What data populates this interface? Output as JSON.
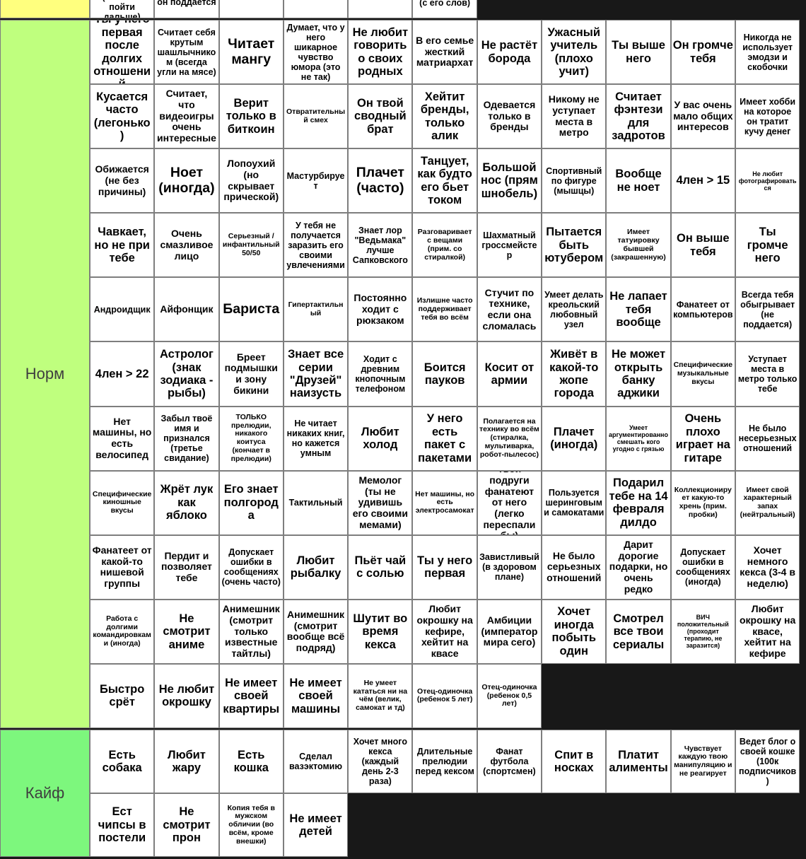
{
  "colors": {
    "background": "#181818",
    "grid_line": "#7e7e7e",
    "cell_bg": "#ffffff",
    "tier_top": "#ffff7e",
    "tier_norm": "#bfff7e",
    "tier_kaif": "#7df77d"
  },
  "tiers": [
    {
      "id": "top",
      "label": "",
      "color": "#ffff7e",
      "rows": [
        [
          {
            "t": "(но готов пойти дальше)",
            "s": "m",
            "off": -3
          },
          {
            "t": "он поддается",
            "s": "m",
            "off": -10
          },
          {
            "t": "",
            "s": "m"
          },
          {
            "t": "",
            "s": "m"
          },
          {
            "t": "",
            "s": "m"
          },
          {
            "t": "(с его слов)",
            "s": "m",
            "off": -9
          }
        ]
      ]
    },
    {
      "id": "norm",
      "label": "Норм",
      "color": "#bfff7e",
      "rows": [
        [
          {
            "t": "Ты у него первая после долгих отношений",
            "s": "l"
          },
          {
            "t": "Считает себя крутым шашлычником (всегда угли на мясе)",
            "s": "m"
          },
          {
            "t": "Читает мангу",
            "s": "xl"
          },
          {
            "t": "Думает, что у него шикарное чувство юмора (это не так)",
            "s": "m"
          },
          {
            "t": "Не любит говорить о своих родных",
            "s": "l"
          },
          {
            "t": "В его семье жесткий матриархат",
            "s": "ml"
          },
          {
            "t": "Не растёт борода",
            "s": "l"
          },
          {
            "t": "Ужасный учитель (плохо учит)",
            "s": "l"
          },
          {
            "t": "Ты выше него",
            "s": "l"
          },
          {
            "t": "Он громче тебя",
            "s": "l"
          },
          {
            "t": "Никогда не использует эмодзи и скобочки",
            "s": "m"
          }
        ],
        [
          {
            "t": "Кусается часто (легонько)",
            "s": "l"
          },
          {
            "t": "Считает, что видеоигры очень интересные",
            "s": "ml"
          },
          {
            "t": "Верит только в биткоин",
            "s": "l"
          },
          {
            "t": "Отвратительный смех",
            "s": "s"
          },
          {
            "t": "Он твой сводный брат",
            "s": "l"
          },
          {
            "t": "Хейтит бренды, только алик",
            "s": "l"
          },
          {
            "t": "Одевается только в бренды",
            "s": "ml"
          },
          {
            "t": "Никому не уступает места в метро",
            "s": "ml"
          },
          {
            "t": "Считает фэнтези для задротов",
            "s": "l"
          },
          {
            "t": "У вас очень мало общих интересов",
            "s": "ml"
          },
          {
            "t": "Имеет хобби на которое он тратит кучу денег",
            "s": "m"
          }
        ],
        [
          {
            "t": "Обижается (не без причины)",
            "s": "ml"
          },
          {
            "t": "Ноет (иногда)",
            "s": "xl"
          },
          {
            "t": "Лопоухий (но скрывает прической)",
            "s": "ml"
          },
          {
            "t": "Мастурбирует",
            "s": "m"
          },
          {
            "t": "Плачет (часто)",
            "s": "xl"
          },
          {
            "t": "Танцует, как будто его бьет током",
            "s": "l"
          },
          {
            "t": "Большой нос (прям шнобель)",
            "s": "l"
          },
          {
            "t": "Спортивный по фигуре (мышцы)",
            "s": "m"
          },
          {
            "t": "Вообще не ноет",
            "s": "l"
          },
          {
            "t": "4лен > 15",
            "s": "l"
          },
          {
            "t": "Не любит фотографироваться",
            "s": "xs"
          }
        ],
        [
          {
            "t": "Чавкает, но не при тебе",
            "s": "l"
          },
          {
            "t": "Очень смазливое лицо",
            "s": "ml"
          },
          {
            "t": "Серьезный / инфантильный 50/50",
            "s": "s"
          },
          {
            "t": "У тебя не получается заразить его своими увлечениями",
            "s": "m"
          },
          {
            "t": "Знает лор \"Ведьмака\" лучше Сапковского",
            "s": "m"
          },
          {
            "t": "Разговаривает с вещами (прим. со стиралкой)",
            "s": "s"
          },
          {
            "t": "Шахматный гроссмейстер",
            "s": "m"
          },
          {
            "t": "Пытается быть ютубером",
            "s": "l"
          },
          {
            "t": "Имеет татуировку бывшей (закрашенную)",
            "s": "s"
          },
          {
            "t": "Он выше тебя",
            "s": "l"
          },
          {
            "t": "Ты громче него",
            "s": "l"
          }
        ],
        [
          {
            "t": "Андроидщик",
            "s": "m"
          },
          {
            "t": "Айфонщик",
            "s": "ml"
          },
          {
            "t": "Бариста",
            "s": "xl"
          },
          {
            "t": "Гипертактильный",
            "s": "s"
          },
          {
            "t": "Постоянно ходит с рюкзаком",
            "s": "ml"
          },
          {
            "t": "Излишне часто поддерживает тебя во всём",
            "s": "s"
          },
          {
            "t": "Стучит по технике, если она сломалась",
            "s": "ml"
          },
          {
            "t": "Умеет делать креольский любовный узел",
            "s": "m"
          },
          {
            "t": "Не лапает тебя вообще",
            "s": "l"
          },
          {
            "t": "Фанатеет от компьютеров",
            "s": "m"
          },
          {
            "t": "Всегда тебя обыгрывает (не поддается)",
            "s": "m"
          }
        ],
        [
          {
            "t": "4лен > 22",
            "s": "l"
          },
          {
            "t": "Астролог (знак зодиака - рыбы)",
            "s": "l"
          },
          {
            "t": "Бреет подмышки и зону бикини",
            "s": "ml"
          },
          {
            "t": "Знает все серии \"Друзей\" наизусть",
            "s": "l"
          },
          {
            "t": "Ходит с древним кнопочным телефоном",
            "s": "m"
          },
          {
            "t": "Боится пауков",
            "s": "l"
          },
          {
            "t": "Косит от армии",
            "s": "l"
          },
          {
            "t": "Живёт в какой-то жопе города",
            "s": "l"
          },
          {
            "t": "Не может открыть банку аджики",
            "s": "l"
          },
          {
            "t": "Специфические музыкальные вкусы",
            "s": "s"
          },
          {
            "t": "Уступает места в метро только тебе",
            "s": "m"
          }
        ],
        [
          {
            "t": "Нет машины, но есть велосипед",
            "s": "ml"
          },
          {
            "t": "Забыл твоё имя и признался (третье свидание)",
            "s": "m"
          },
          {
            "t": "ТОЛЬКО прелюдии, никакого коитуса (кончает в прелюдии)",
            "s": "s"
          },
          {
            "t": "Не читает никаких книг, но кажется умным",
            "s": "m"
          },
          {
            "t": "Любит холод",
            "s": "l"
          },
          {
            "t": "У него есть пакет с пакетами",
            "s": "l"
          },
          {
            "t": "Полагается на технику во всём (стиралка, мультиварка, робот-пылесос)",
            "s": "s"
          },
          {
            "t": "Плачет (иногда)",
            "s": "l"
          },
          {
            "t": "Умеет аргументированно смешать кого угодно с грязью",
            "s": "xs"
          },
          {
            "t": "Очень плохо играет на гитаре",
            "s": "l"
          },
          {
            "t": "Не было несерьезных отношений",
            "s": "m"
          }
        ],
        [
          {
            "t": "Специфические киношные вкусы",
            "s": "s"
          },
          {
            "t": "Жрёт лук как яблоко",
            "s": "l"
          },
          {
            "t": "Его знает полгорода",
            "s": "l"
          },
          {
            "t": "Тактильный",
            "s": "m"
          },
          {
            "t": "Мемолог (ты не удивишь его своими мемами)",
            "s": "ml"
          },
          {
            "t": "Нет машины, но есть электросамокат",
            "s": "s"
          },
          {
            "t": "Твои подруги фанатеют от него (легко переспали бы)",
            "s": "ml"
          },
          {
            "t": "Пользуется шеринговыми самокатами",
            "s": "m"
          },
          {
            "t": "Подарил тебе на 14 февраля дилдо",
            "s": "l"
          },
          {
            "t": "Коллекционирует какую-то хрень (прим. пробки)",
            "s": "s"
          },
          {
            "t": "Имеет свой характерный запах (нейтральный)",
            "s": "s"
          }
        ],
        [
          {
            "t": "Фанатеет от какой-то нишевой группы",
            "s": "ml"
          },
          {
            "t": "Пердит и позволяет тебе",
            "s": "ml"
          },
          {
            "t": "Допускает ошибки в сообщениях (очень часто)",
            "s": "m"
          },
          {
            "t": "Любит рыбалку",
            "s": "l"
          },
          {
            "t": "Пьёт чай с солью",
            "s": "l"
          },
          {
            "t": "Ты у него первая",
            "s": "l"
          },
          {
            "t": "Завистливый (в здоровом плане)",
            "s": "m"
          },
          {
            "t": "Не было серьезных отношений",
            "s": "ml"
          },
          {
            "t": "Дарит дорогие подарки, но очень редко",
            "s": "ml"
          },
          {
            "t": "Допускает ошибки в сообщениях (иногда)",
            "s": "m"
          },
          {
            "t": "Хочет немного кекса (3-4 в неделю)",
            "s": "ml"
          }
        ],
        [
          {
            "t": "Работа с долгими командировками (иногда)",
            "s": "s"
          },
          {
            "t": "Не смотрит аниме",
            "s": "l"
          },
          {
            "t": "Анимешник (смотрит только известные тайтлы)",
            "s": "ml"
          },
          {
            "t": "Анимешник (смотрит вообще всё подряд)",
            "s": "ml"
          },
          {
            "t": "Шутит во время кекса",
            "s": "l"
          },
          {
            "t": "Любит окрошку на кефире, хейтит на квасе",
            "s": "ml"
          },
          {
            "t": "Амбиции (император мира сего)",
            "s": "ml"
          },
          {
            "t": "Хочет иногда побыть один",
            "s": "l"
          },
          {
            "t": "Смотрел все твои сериалы",
            "s": "l"
          },
          {
            "t": "ВИЧ положительный (проходит терапию, не заразится)",
            "s": "xs"
          },
          {
            "t": "Любит окрошку на квасе, хейтит на кефире",
            "s": "ml"
          }
        ],
        [
          {
            "t": "Быстро срёт",
            "s": "l"
          },
          {
            "t": "Не любит окрошку",
            "s": "l"
          },
          {
            "t": "Не имеет своей квартиры",
            "s": "l"
          },
          {
            "t": "Не имеет своей машины",
            "s": "l"
          },
          {
            "t": "Не умеет кататься ни на чём (велик, самокат и тд)",
            "s": "s"
          },
          {
            "t": "Отец-одиночка (ребенок 5 лет)",
            "s": "s"
          },
          {
            "t": "Отец-одиночка (ребенок 0,5 лет)",
            "s": "s"
          }
        ]
      ]
    },
    {
      "id": "kaif",
      "label": "Кайф",
      "color": "#7df77d",
      "rows": [
        [
          {
            "t": "Есть собака",
            "s": "l"
          },
          {
            "t": "Любит жару",
            "s": "l"
          },
          {
            "t": "Есть кошка",
            "s": "l"
          },
          {
            "t": "Сделал вазэктомию",
            "s": "m"
          },
          {
            "t": "Хочет много кекса (каждый день 2-3 раза)",
            "s": "m"
          },
          {
            "t": "Длительные прелюдии перед кексом",
            "s": "m"
          },
          {
            "t": "Фанат футбола (спортсмен)",
            "s": "m"
          },
          {
            "t": "Спит в носках",
            "s": "l"
          },
          {
            "t": "Платит алименты",
            "s": "l"
          },
          {
            "t": "Чувствует каждую твою манипуляцию и не реагирует",
            "s": "s"
          },
          {
            "t": "Ведет блог о своей кошке (100к подписчиков)",
            "s": "m"
          }
        ],
        [
          {
            "t": "Ест чипсы в постели",
            "s": "l"
          },
          {
            "t": "Не смотрит прон",
            "s": "l"
          },
          {
            "t": "Копия тебя в мужском обличии (во всём, кроме внешки)",
            "s": "s"
          },
          {
            "t": "Не имеет детей",
            "s": "l"
          }
        ]
      ]
    }
  ]
}
